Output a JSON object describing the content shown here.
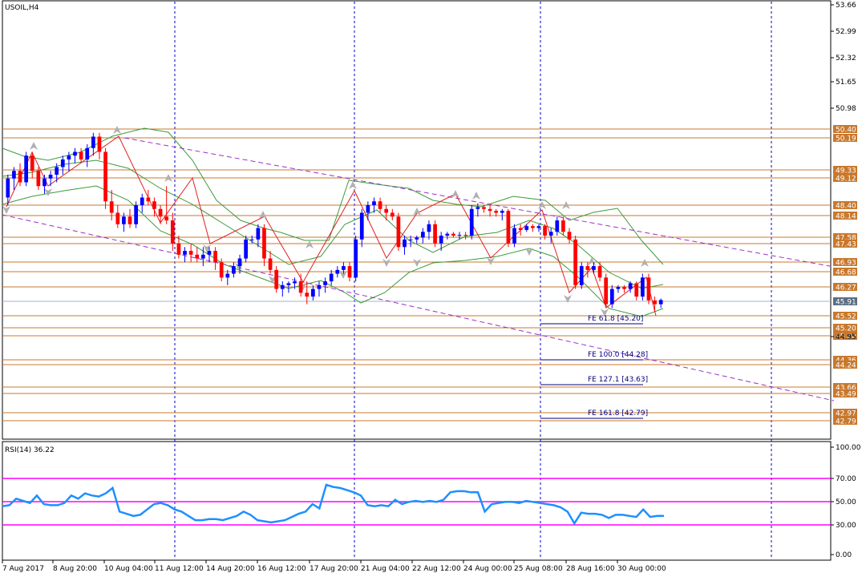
{
  "chart_data": {
    "type": "candlestick",
    "title": "USOIL,H4",
    "price_ticks": [
      "53.66",
      "52.99",
      "52.32",
      "51.65",
      "50.98",
      "50.31",
      "49.64",
      "48.97",
      "48.30",
      "47.63",
      "46.96",
      "46.29",
      "45.62",
      "44.95"
    ],
    "time_ticks": [
      "7 Aug 2017",
      "8 Aug 20:00",
      "10 Aug 04:00",
      "11 Aug 12:00",
      "14 Aug 20:00",
      "16 Aug 12:00",
      "17 Aug 20:00",
      "21 Aug 04:00",
      "22 Aug 12:00",
      "24 Aug 00:00",
      "25 Aug 08:00",
      "28 Aug 16:00",
      "30 Aug 00:00"
    ],
    "ylim": [
      44.95,
      53.66
    ],
    "levels": [
      "50.40",
      "50.19",
      "49.33",
      "49.12",
      "48.40",
      "48.14",
      "47.58",
      "47.43",
      "46.93",
      "46.68",
      "46.27",
      "45.52",
      "45.20",
      "45.00",
      "44.36",
      "44.24",
      "43.66",
      "43.49",
      "42.97",
      "42.79"
    ],
    "current_price": "45.91",
    "fibonacci": [
      {
        "label": "FE 61.8 [45.20]"
      },
      {
        "label": "FE 100.0 [44.28]"
      },
      {
        "label": "FE 127.1 [43.63]"
      },
      {
        "label": "FE 161.8 [42.79]"
      }
    ],
    "candles": [
      [
        48.6,
        49.2,
        48.4,
        49.1
      ],
      [
        49.1,
        49.4,
        48.8,
        49.3
      ],
      [
        49.3,
        49.5,
        48.9,
        49.0
      ],
      [
        49.0,
        49.8,
        48.9,
        49.7
      ],
      [
        49.7,
        49.8,
        49.1,
        49.3
      ],
      [
        49.3,
        49.4,
        48.8,
        48.9
      ],
      [
        48.9,
        49.2,
        48.7,
        49.1
      ],
      [
        49.1,
        49.3,
        48.9,
        49.2
      ],
      [
        49.2,
        49.5,
        49.0,
        49.4
      ],
      [
        49.4,
        49.7,
        49.2,
        49.6
      ],
      [
        49.6,
        49.8,
        49.3,
        49.7
      ],
      [
        49.7,
        49.9,
        49.5,
        49.8
      ],
      [
        49.8,
        49.9,
        49.5,
        49.6
      ],
      [
        49.6,
        50.0,
        49.4,
        49.9
      ],
      [
        49.9,
        50.3,
        49.7,
        50.2
      ],
      [
        50.2,
        50.3,
        49.6,
        49.8
      ],
      [
        49.8,
        49.9,
        48.3,
        48.5
      ],
      [
        48.5,
        48.8,
        48.0,
        48.2
      ],
      [
        48.2,
        48.4,
        47.8,
        47.9
      ],
      [
        47.9,
        48.2,
        47.7,
        48.1
      ],
      [
        48.1,
        48.3,
        47.8,
        47.9
      ],
      [
        47.9,
        48.5,
        47.8,
        48.4
      ],
      [
        48.4,
        48.7,
        48.2,
        48.6
      ],
      [
        48.6,
        48.8,
        48.4,
        48.5
      ],
      [
        48.5,
        48.6,
        48.1,
        48.3
      ],
      [
        48.3,
        48.4,
        47.9,
        48.1
      ],
      [
        48.1,
        48.9,
        47.9,
        48.0
      ],
      [
        48.0,
        48.2,
        47.2,
        47.4
      ],
      [
        47.4,
        47.6,
        47.0,
        47.1
      ],
      [
        47.1,
        47.3,
        46.9,
        47.2
      ],
      [
        47.2,
        47.4,
        46.9,
        47.1
      ],
      [
        47.1,
        47.3,
        46.9,
        47.0
      ],
      [
        47.0,
        47.3,
        46.8,
        47.1
      ],
      [
        47.1,
        47.3,
        46.9,
        47.2
      ],
      [
        47.2,
        47.3,
        46.7,
        46.9
      ],
      [
        46.9,
        47.0,
        46.4,
        46.5
      ],
      [
        46.5,
        46.7,
        46.3,
        46.6
      ],
      [
        46.6,
        46.9,
        46.5,
        46.8
      ],
      [
        46.8,
        47.1,
        46.6,
        47.0
      ],
      [
        47.0,
        47.6,
        46.9,
        47.5
      ],
      [
        47.5,
        47.6,
        47.4,
        47.5
      ],
      [
        47.5,
        47.9,
        47.3,
        47.8
      ],
      [
        47.8,
        47.9,
        46.8,
        47.0
      ],
      [
        47.0,
        47.2,
        46.6,
        46.7
      ],
      [
        46.7,
        46.8,
        46.1,
        46.2
      ],
      [
        46.2,
        46.4,
        46.0,
        46.3
      ],
      [
        46.3,
        46.4,
        46.1,
        46.35
      ],
      [
        46.35,
        46.5,
        46.2,
        46.4
      ],
      [
        46.4,
        46.6,
        46.0,
        46.1
      ],
      [
        46.1,
        46.4,
        45.8,
        46.0
      ],
      [
        46.0,
        46.3,
        45.9,
        46.2
      ],
      [
        46.2,
        46.4,
        46.0,
        46.3
      ],
      [
        46.3,
        46.5,
        46.1,
        46.4
      ],
      [
        46.4,
        46.7,
        46.3,
        46.6
      ],
      [
        46.6,
        46.8,
        46.5,
        46.7
      ],
      [
        46.7,
        46.9,
        46.6,
        46.8
      ],
      [
        46.8,
        46.9,
        46.4,
        46.5
      ],
      [
        46.5,
        47.6,
        46.4,
        47.5
      ],
      [
        47.5,
        48.3,
        47.3,
        48.2
      ],
      [
        48.2,
        48.5,
        48.0,
        48.4
      ],
      [
        48.4,
        48.6,
        48.2,
        48.5
      ],
      [
        48.5,
        48.6,
        48.2,
        48.3
      ],
      [
        48.3,
        48.4,
        48.0,
        48.2
      ],
      [
        48.2,
        48.3,
        48.0,
        48.1
      ],
      [
        48.1,
        48.2,
        47.2,
        47.3
      ],
      [
        47.3,
        47.6,
        47.1,
        47.5
      ],
      [
        47.5,
        47.6,
        47.3,
        47.5
      ],
      [
        47.5,
        47.6,
        47.4,
        47.55
      ],
      [
        47.55,
        47.8,
        47.4,
        47.7
      ],
      [
        47.7,
        48.0,
        47.5,
        47.9
      ],
      [
        47.9,
        48.0,
        47.3,
        47.4
      ],
      [
        47.4,
        47.7,
        47.2,
        47.6
      ],
      [
        47.6,
        47.7,
        47.5,
        47.65
      ],
      [
        47.65,
        47.7,
        47.55,
        47.6
      ],
      [
        47.6,
        47.7,
        47.5,
        47.62
      ],
      [
        47.62,
        47.7,
        47.5,
        47.6
      ],
      [
        47.6,
        48.4,
        47.5,
        48.3
      ],
      [
        48.3,
        48.45,
        48.1,
        48.35
      ],
      [
        48.35,
        48.4,
        48.2,
        48.3
      ],
      [
        48.3,
        48.4,
        48.1,
        48.25
      ],
      [
        48.25,
        48.3,
        48.1,
        48.2
      ],
      [
        48.2,
        48.3,
        48.0,
        48.25
      ],
      [
        48.25,
        48.3,
        47.3,
        47.4
      ],
      [
        47.4,
        47.9,
        47.3,
        47.8
      ],
      [
        47.8,
        47.9,
        47.6,
        47.75
      ],
      [
        47.75,
        47.9,
        47.7,
        47.85
      ],
      [
        47.85,
        47.9,
        47.7,
        47.8
      ],
      [
        47.8,
        47.9,
        47.7,
        47.85
      ],
      [
        47.85,
        47.9,
        47.5,
        47.6
      ],
      [
        47.6,
        47.8,
        47.4,
        47.7
      ],
      [
        47.7,
        48.1,
        47.6,
        48.0
      ],
      [
        48.0,
        48.1,
        47.6,
        47.7
      ],
      [
        47.7,
        47.8,
        47.4,
        47.5
      ],
      [
        47.5,
        47.6,
        46.2,
        46.3
      ],
      [
        46.3,
        46.9,
        46.2,
        46.8
      ],
      [
        46.8,
        46.9,
        46.5,
        46.7
      ],
      [
        46.7,
        46.9,
        46.6,
        46.8
      ],
      [
        46.8,
        46.9,
        46.4,
        46.5
      ],
      [
        46.5,
        46.6,
        45.7,
        45.8
      ],
      [
        45.8,
        46.3,
        45.7,
        46.2
      ],
      [
        46.2,
        46.3,
        46.1,
        46.25
      ],
      [
        46.25,
        46.3,
        46.1,
        46.2
      ],
      [
        46.2,
        46.4,
        46.1,
        46.35
      ],
      [
        46.35,
        46.4,
        45.9,
        46.0
      ],
      [
        46.0,
        46.6,
        45.9,
        46.5
      ],
      [
        46.5,
        46.6,
        45.8,
        45.9
      ],
      [
        45.9,
        46.0,
        45.6,
        45.8
      ],
      [
        45.8,
        45.95,
        45.7,
        45.91
      ]
    ],
    "indicator": {
      "name": "RSI(14)",
      "value": "36.22",
      "ticks": [
        "100.00",
        "70.00",
        "50.00",
        "30.00",
        "0.00"
      ],
      "levels": [
        70,
        50,
        30
      ],
      "values": [
        45,
        46,
        52,
        50,
        48,
        55,
        47,
        46,
        46,
        48,
        55,
        52,
        57,
        55,
        54,
        57,
        62,
        40,
        38,
        36,
        37,
        42,
        47,
        48,
        46,
        42,
        40,
        36,
        32,
        32,
        33,
        33,
        32,
        34,
        36,
        40,
        37,
        32,
        31,
        30,
        31,
        32,
        35,
        38,
        40,
        47,
        43,
        65,
        63,
        62,
        60,
        58,
        55,
        46,
        45,
        46,
        45,
        51,
        47,
        49,
        50,
        49,
        50,
        49,
        51,
        58,
        59,
        59,
        58,
        58,
        40,
        47,
        48,
        49,
        49,
        48,
        50,
        49,
        48,
        47,
        46,
        44,
        40,
        29,
        39,
        38,
        38,
        37,
        34,
        37,
        37,
        36,
        35,
        42,
        35,
        36,
        36
      ]
    }
  }
}
